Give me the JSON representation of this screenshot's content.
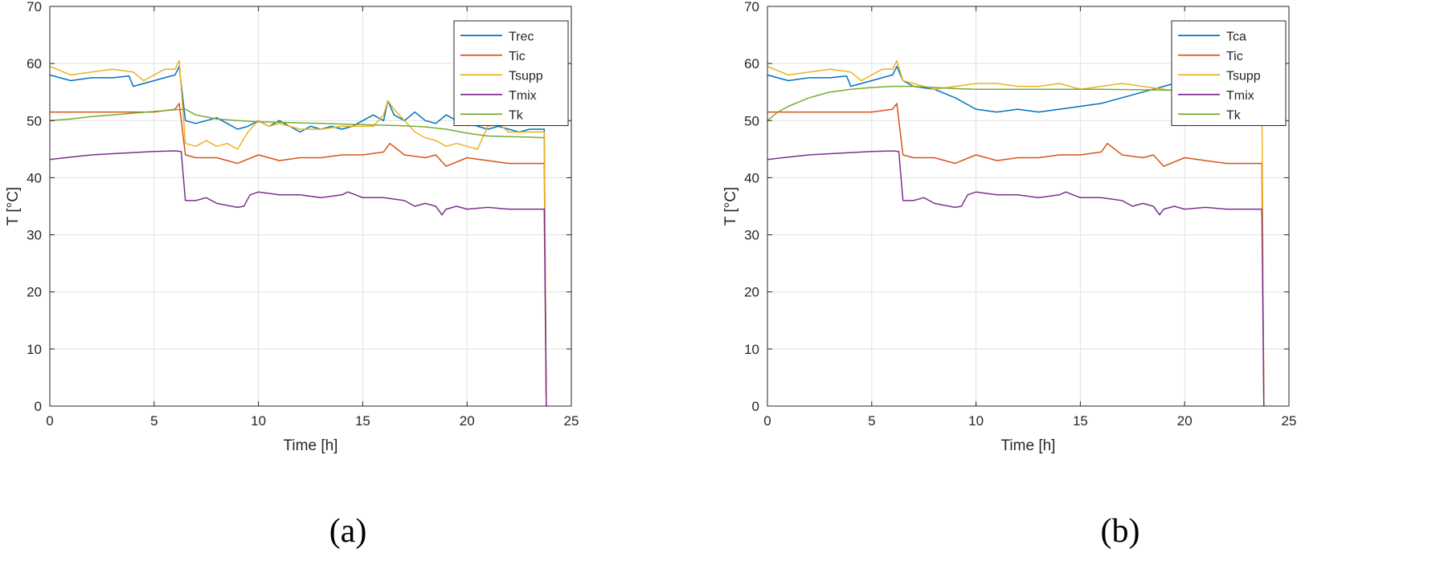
{
  "figure": {
    "panels": [
      {
        "label": "(a)"
      },
      {
        "label": "(b)"
      }
    ]
  },
  "chart_data": [
    {
      "type": "line",
      "panel": "(a)",
      "xlabel": "Time [h]",
      "ylabel": "T [°C]",
      "xlim": [
        0,
        25
      ],
      "ylim": [
        0,
        70
      ],
      "xticks": [
        0,
        5,
        10,
        15,
        20,
        25
      ],
      "yticks": [
        0,
        10,
        20,
        30,
        40,
        50,
        60,
        70
      ],
      "grid": true,
      "legend_position": "top-right",
      "series": [
        {
          "name": "Trec",
          "color": "#0072BD",
          "x": [
            0,
            1,
            2,
            3,
            3.8,
            4,
            4.5,
            5,
            5.5,
            6,
            6.2,
            6.5,
            7,
            7.5,
            8,
            8.5,
            9,
            9.5,
            10,
            10.5,
            11,
            11.5,
            12,
            12.5,
            13,
            13.5,
            14,
            14.5,
            15,
            15.5,
            16,
            16.2,
            16.5,
            17,
            17.5,
            18,
            18.5,
            19,
            19.5,
            20,
            20.5,
            21,
            21.5,
            22,
            22.5,
            23,
            23.5,
            23.7,
            23.8
          ],
          "y": [
            58,
            57,
            57.5,
            57.5,
            57.8,
            56,
            56.5,
            57,
            57.5,
            58,
            59.5,
            50,
            49.5,
            50,
            50.5,
            49.5,
            48.5,
            49,
            50,
            49,
            50,
            49,
            48,
            49,
            48.5,
            49,
            48.5,
            49,
            50,
            51,
            50,
            53.5,
            51,
            50,
            51.5,
            50,
            49.5,
            51,
            50,
            50,
            49,
            48.5,
            49,
            48.5,
            48,
            48.5,
            48.5,
            48.5,
            0
          ]
        },
        {
          "name": "Tic",
          "color": "#D95319",
          "x": [
            0,
            1,
            2,
            3,
            4,
            5,
            6,
            6.2,
            6.5,
            7,
            8,
            9,
            10,
            11,
            12,
            13,
            14,
            15,
            16,
            16.3,
            17,
            18,
            18.5,
            19,
            20,
            21,
            22,
            23,
            23.7,
            23.8
          ],
          "y": [
            51.5,
            51.5,
            51.5,
            51.5,
            51.5,
            51.5,
            52,
            53,
            44,
            43.5,
            43.5,
            42.5,
            44,
            43,
            43.5,
            43.5,
            44,
            44,
            44.5,
            46,
            44,
            43.5,
            44,
            42,
            43.5,
            43,
            42.5,
            42.5,
            42.5,
            0
          ]
        },
        {
          "name": "Tsupp",
          "color": "#EDB120",
          "x": [
            0,
            1,
            2,
            3,
            4,
            4.5,
            5,
            5.5,
            6,
            6.2,
            6.5,
            7,
            7.5,
            8,
            8.5,
            9,
            9.5,
            10,
            10.5,
            11,
            11.5,
            12,
            13,
            14,
            15,
            15.5,
            16,
            16.2,
            16.5,
            17,
            17.5,
            18,
            18.5,
            19,
            19.5,
            20,
            20.5,
            21,
            21.5,
            22,
            23,
            23.7,
            23.8
          ],
          "y": [
            59.5,
            58,
            58.5,
            59,
            58.5,
            57,
            58,
            59,
            59,
            60.5,
            46,
            45.5,
            46.5,
            45.5,
            46,
            45,
            48,
            50,
            49,
            49.5,
            49,
            48.5,
            48.5,
            49,
            49,
            49,
            51,
            53.5,
            52,
            50,
            48,
            47,
            46.5,
            45.5,
            46,
            45.5,
            45,
            49,
            49.5,
            48,
            48,
            48,
            0
          ]
        },
        {
          "name": "Tmix",
          "color": "#7E2F8E",
          "x": [
            0,
            1,
            2,
            3,
            4,
            5,
            6,
            6.3,
            6.5,
            7,
            7.5,
            8,
            9,
            9.3,
            9.6,
            10,
            11,
            12,
            13,
            14,
            14.3,
            15,
            16,
            17,
            17.5,
            18,
            18.5,
            18.8,
            19,
            19.5,
            20,
            21,
            22,
            23,
            23.7,
            23.8
          ],
          "y": [
            43.2,
            43.6,
            44,
            44.2,
            44.4,
            44.6,
            44.7,
            44.6,
            36,
            36,
            36.5,
            35.5,
            34.8,
            35,
            37,
            37.5,
            37,
            37,
            36.5,
            37,
            37.5,
            36.5,
            36.5,
            36,
            35,
            35.5,
            35,
            33.5,
            34.5,
            35,
            34.5,
            34.8,
            34.5,
            34.5,
            34.5,
            0
          ]
        },
        {
          "name": "Tk",
          "color": "#77AC30",
          "x": [
            0,
            1,
            2,
            3,
            4,
            5,
            6,
            6.5,
            7,
            8,
            9,
            10,
            11,
            12,
            13,
            14,
            15,
            16,
            17,
            18,
            19,
            20,
            21,
            22,
            23,
            23.7
          ],
          "y": [
            50,
            50.3,
            50.7,
            51,
            51.3,
            51.6,
            51.9,
            52,
            51,
            50.3,
            50,
            49.8,
            49.7,
            49.6,
            49.5,
            49.4,
            49.3,
            49.2,
            49.1,
            48.9,
            48.5,
            47.8,
            47.3,
            47.2,
            47.1,
            47
          ]
        }
      ]
    },
    {
      "type": "line",
      "panel": "(b)",
      "xlabel": "Time [h]",
      "ylabel": "T [°C]",
      "xlim": [
        0,
        25
      ],
      "ylim": [
        0,
        70
      ],
      "xticks": [
        0,
        5,
        10,
        15,
        20,
        25
      ],
      "yticks": [
        0,
        10,
        20,
        30,
        40,
        50,
        60,
        70
      ],
      "grid": true,
      "legend_position": "top-right",
      "series": [
        {
          "name": "Tca",
          "color": "#0072BD",
          "x": [
            0,
            1,
            2,
            3,
            3.8,
            4,
            4.5,
            5,
            5.5,
            6,
            6.2,
            6.5,
            7,
            8,
            9,
            10,
            11,
            12,
            13,
            14,
            15,
            16,
            17,
            18,
            18.5,
            19,
            19.5,
            20
          ],
          "y": [
            58,
            57,
            57.5,
            57.5,
            57.8,
            56,
            56.5,
            57,
            57.5,
            58,
            59.5,
            57,
            56,
            55.5,
            54,
            52,
            51.5,
            52,
            51.5,
            52,
            52.5,
            53,
            54,
            55,
            55.5,
            56,
            56.5,
            57
          ]
        },
        {
          "name": "Tic",
          "color": "#D95319",
          "x": [
            0,
            1,
            2,
            3,
            4,
            5,
            6,
            6.2,
            6.5,
            7,
            8,
            9,
            10,
            11,
            12,
            13,
            14,
            15,
            16,
            16.3,
            17,
            18,
            18.5,
            19,
            20,
            21,
            22,
            23,
            23.7,
            23.8
          ],
          "y": [
            51.5,
            51.5,
            51.5,
            51.5,
            51.5,
            51.5,
            52,
            53,
            44,
            43.5,
            43.5,
            42.5,
            44,
            43,
            43.5,
            43.5,
            44,
            44,
            44.5,
            46,
            44,
            43.5,
            44,
            42,
            43.5,
            43,
            42.5,
            42.5,
            42.5,
            0
          ]
        },
        {
          "name": "Tsupp",
          "color": "#EDB120",
          "x": [
            0,
            1,
            2,
            3,
            4,
            4.5,
            5,
            5.5,
            6,
            6.2,
            6.5,
            7,
            8,
            9,
            10,
            11,
            12,
            13,
            14,
            15,
            16,
            17,
            18,
            19,
            20,
            23.7,
            23.8
          ],
          "y": [
            59.5,
            58,
            58.5,
            59,
            58.5,
            57,
            58,
            59,
            59,
            60.5,
            57,
            56.5,
            55.5,
            56,
            56.5,
            56.5,
            56,
            56,
            56.5,
            55.5,
            56,
            56.5,
            56,
            55.5,
            55,
            55,
            0
          ]
        },
        {
          "name": "Tmix",
          "color": "#7E2F8E",
          "x": [
            0,
            1,
            2,
            3,
            4,
            5,
            6,
            6.3,
            6.5,
            7,
            7.5,
            8,
            9,
            9.3,
            9.6,
            10,
            11,
            12,
            13,
            14,
            14.3,
            15,
            16,
            17,
            17.5,
            18,
            18.5,
            18.8,
            19,
            19.5,
            20,
            21,
            22,
            23,
            23.7,
            23.8
          ],
          "y": [
            43.2,
            43.6,
            44,
            44.2,
            44.4,
            44.6,
            44.7,
            44.6,
            36,
            36,
            36.5,
            35.5,
            34.8,
            35,
            37,
            37.5,
            37,
            37,
            36.5,
            37,
            37.5,
            36.5,
            36.5,
            36,
            35,
            35.5,
            35,
            33.5,
            34.5,
            35,
            34.5,
            34.8,
            34.5,
            34.5,
            34.5,
            0
          ]
        },
        {
          "name": "Tk",
          "color": "#77AC30",
          "x": [
            0,
            0.5,
            1,
            2,
            3,
            4,
            5,
            6,
            7,
            8,
            9,
            10,
            12,
            14,
            16,
            18,
            20,
            22,
            23,
            23.7
          ],
          "y": [
            50,
            51.5,
            52.5,
            54,
            55,
            55.5,
            55.8,
            56,
            56,
            55.8,
            55.6,
            55.5,
            55.5,
            55.5,
            55.5,
            55.4,
            55.3,
            55.2,
            55.1,
            55
          ]
        }
      ]
    }
  ]
}
